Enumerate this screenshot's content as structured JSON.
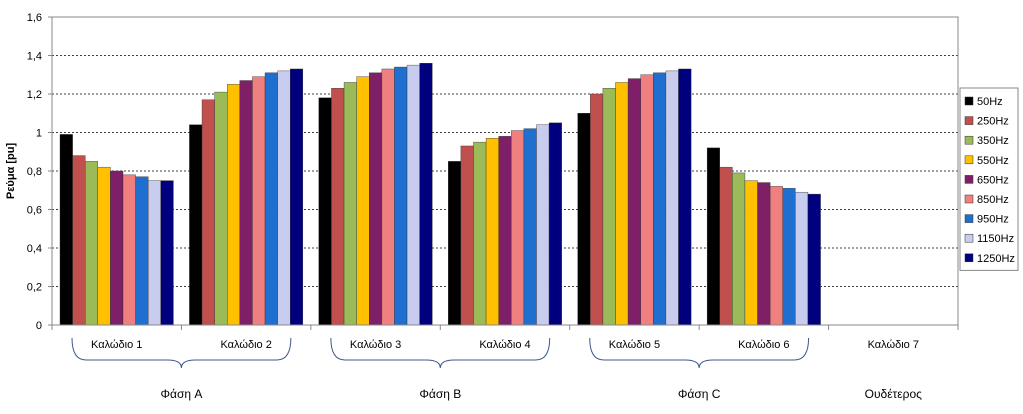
{
  "chart_data": {
    "type": "bar",
    "ylabel": "Ρεύμα [pu]",
    "ylim": [
      0,
      1.6
    ],
    "yticks": [
      "0",
      "0,2",
      "0,4",
      "0,6",
      "0,8",
      "1",
      "1,2",
      "1,4",
      "1,6"
    ],
    "grid": "horizontal dashed",
    "legend_position": "right",
    "categories": [
      "Καλώδιο 1",
      "Καλώδιο 2",
      "Καλώδιο 3",
      "Καλώδιο 4",
      "Καλώδιο 5",
      "Καλώδιο 6",
      "Καλώδιο 7"
    ],
    "groups": [
      {
        "label": "Φάση A",
        "categories": [
          "Καλώδιο 1",
          "Καλώδιο 2"
        ]
      },
      {
        "label": "Φάση B",
        "categories": [
          "Καλώδιο 3",
          "Καλώδιο 4"
        ]
      },
      {
        "label": "Φάση C",
        "categories": [
          "Καλώδιο 5",
          "Καλώδιο 6"
        ]
      },
      {
        "label": "Ουδέτερος",
        "categories": [
          "Καλώδιο 7"
        ]
      }
    ],
    "series": [
      {
        "name": "50Hz",
        "color": "#000000",
        "values": [
          0.99,
          1.04,
          1.18,
          0.85,
          1.1,
          0.92,
          0
        ]
      },
      {
        "name": "250Hz",
        "color": "#c0504d",
        "values": [
          0.88,
          1.17,
          1.23,
          0.93,
          1.2,
          0.82,
          0
        ]
      },
      {
        "name": "350Hz",
        "color": "#9bbb59",
        "values": [
          0.85,
          1.21,
          1.26,
          0.95,
          1.23,
          0.79,
          0
        ]
      },
      {
        "name": "550Hz",
        "color": "#ffc000",
        "values": [
          0.82,
          1.25,
          1.29,
          0.97,
          1.26,
          0.75,
          0
        ]
      },
      {
        "name": "650Hz",
        "color": "#7f1f68",
        "values": [
          0.8,
          1.27,
          1.31,
          0.98,
          1.28,
          0.74,
          0
        ]
      },
      {
        "name": "850Hz",
        "color": "#f08080",
        "values": [
          0.78,
          1.29,
          1.33,
          1.01,
          1.3,
          0.72,
          0
        ]
      },
      {
        "name": "950Hz",
        "color": "#1f6fd0",
        "values": [
          0.77,
          1.31,
          1.34,
          1.02,
          1.31,
          0.71,
          0
        ]
      },
      {
        "name": "1150Hz",
        "color": "#c8cdf0",
        "values": [
          0.75,
          1.32,
          1.35,
          1.04,
          1.32,
          0.69,
          0
        ]
      },
      {
        "name": "1250Hz",
        "color": "#00007f",
        "values": [
          0.75,
          1.33,
          1.36,
          1.05,
          1.33,
          0.68,
          0
        ]
      }
    ]
  }
}
